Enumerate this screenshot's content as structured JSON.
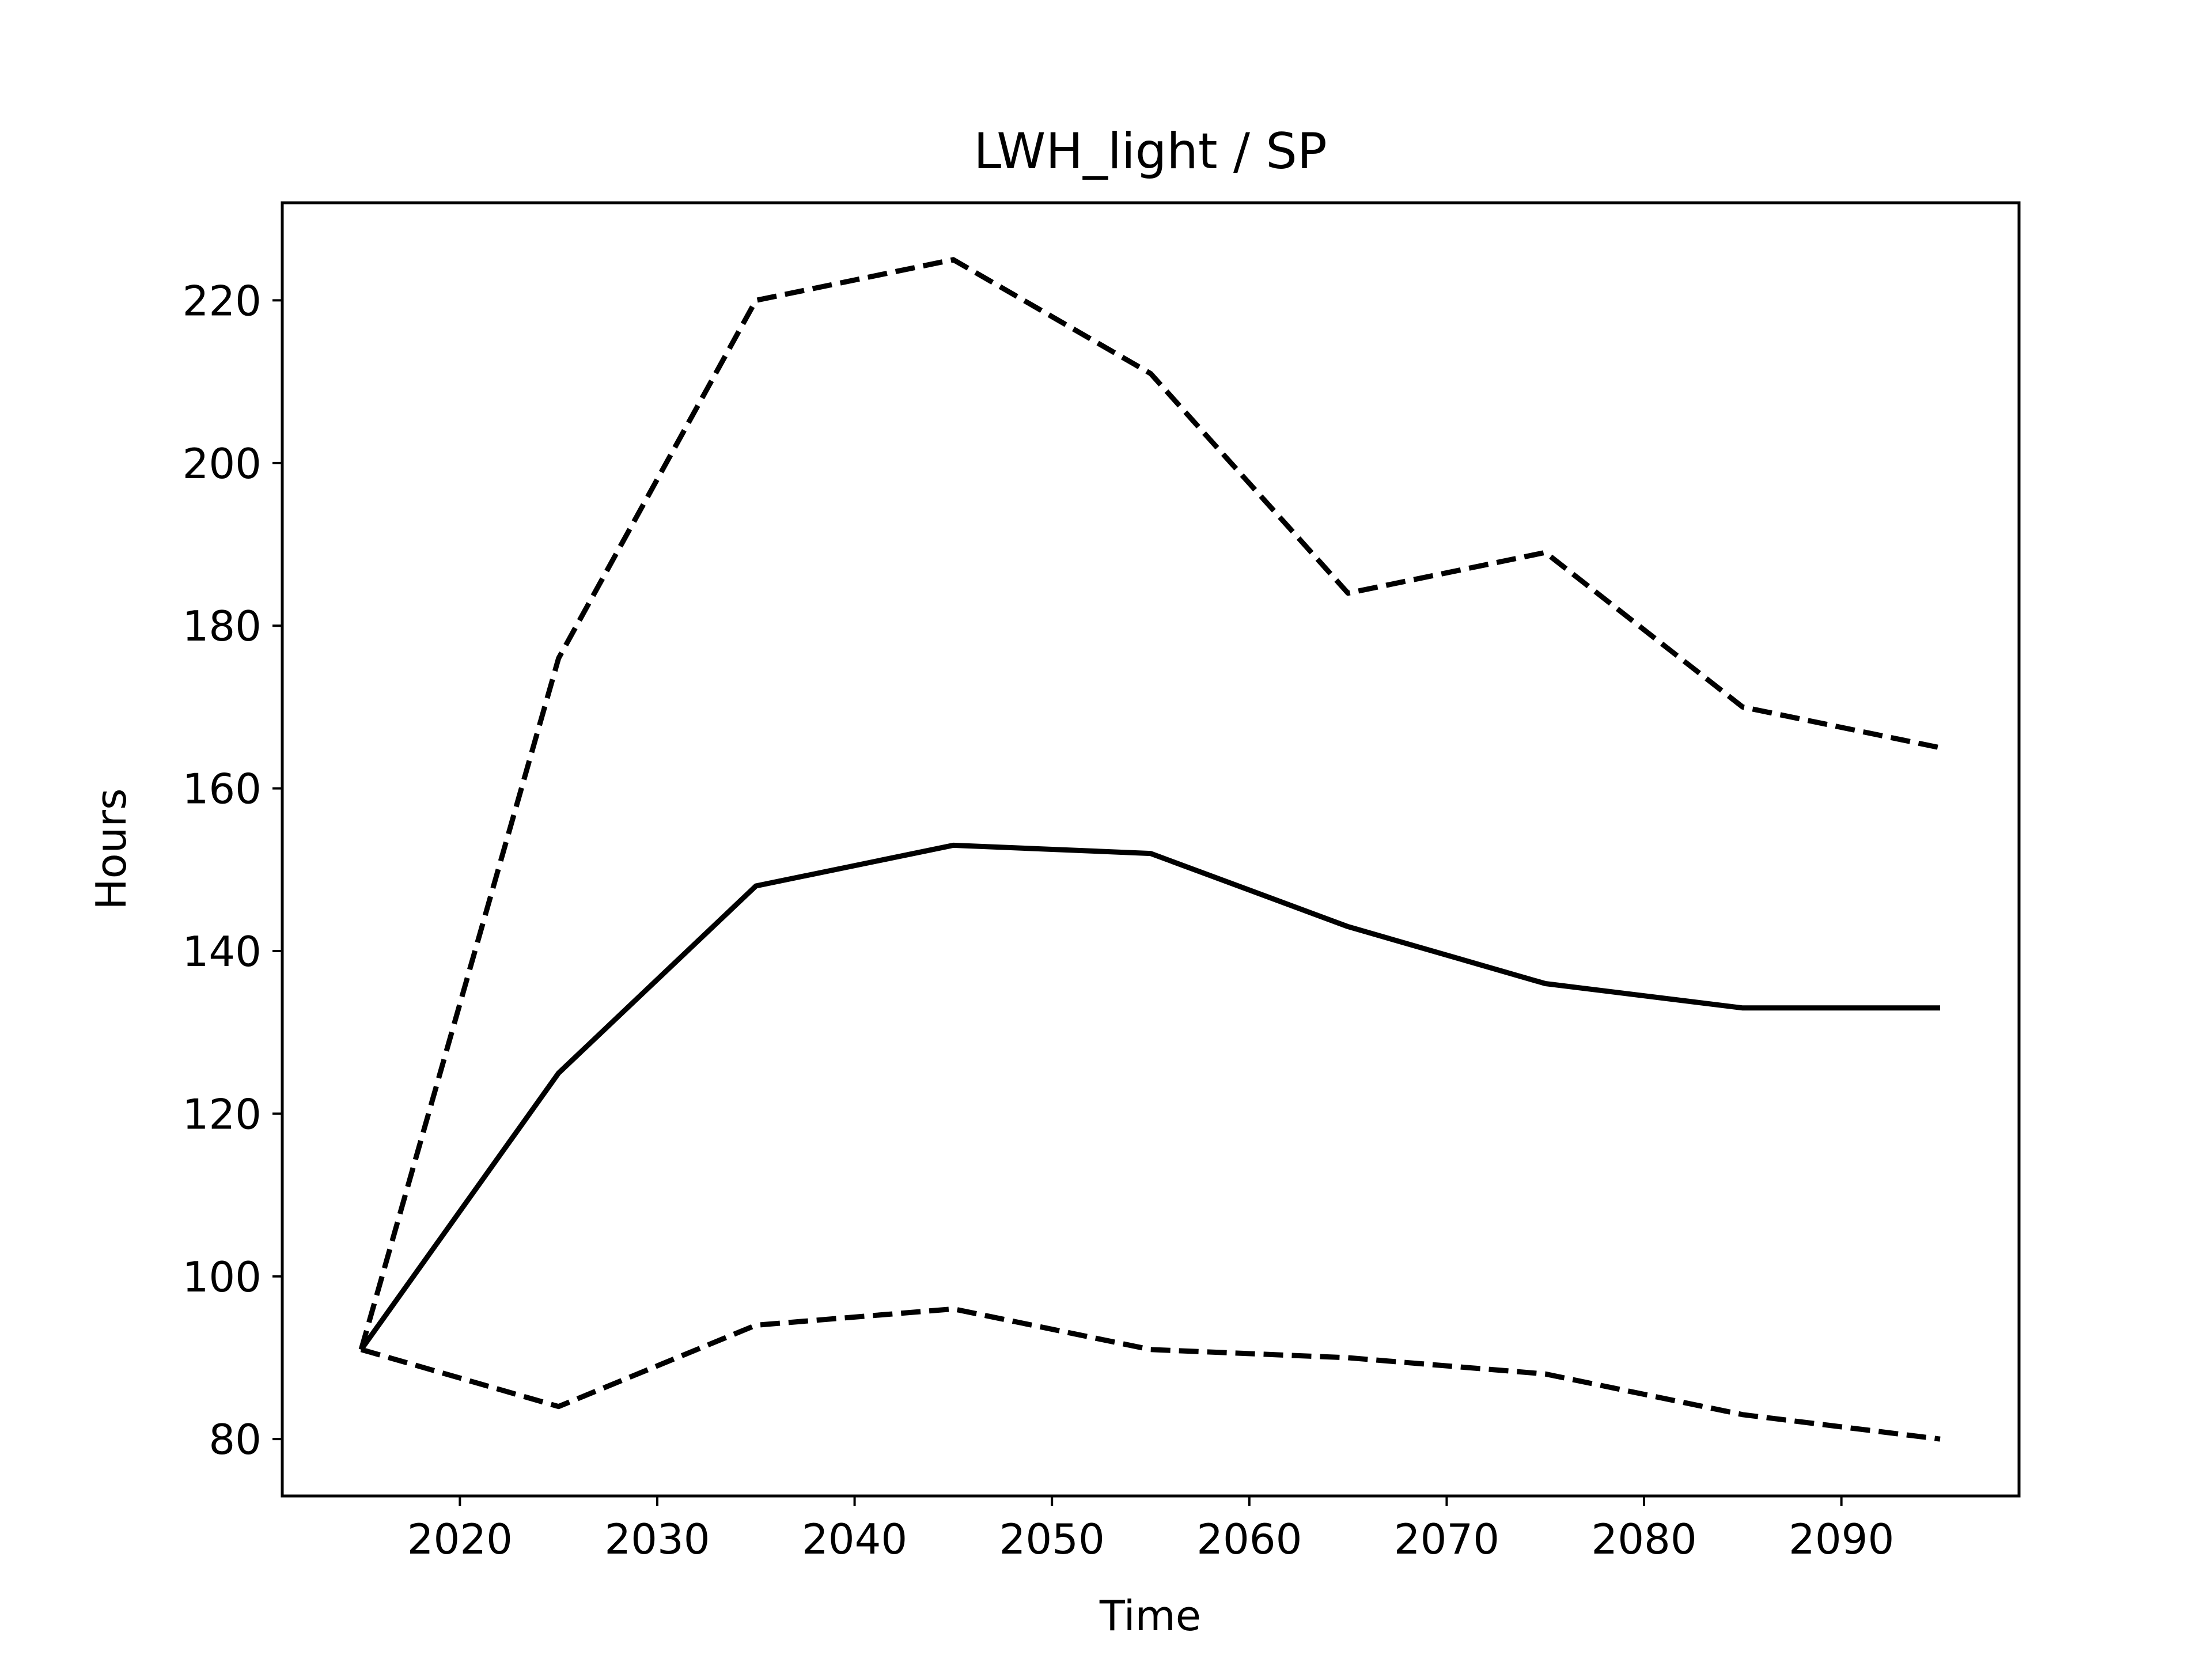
{
  "chart_data": {
    "type": "line",
    "title": "LWH_light / SP",
    "xlabel": "Time",
    "ylabel": "Hours",
    "xlim": [
      2011,
      2099
    ],
    "ylim": [
      73,
      232
    ],
    "xticks": [
      2020,
      2030,
      2040,
      2050,
      2060,
      2070,
      2080,
      2090
    ],
    "yticks": [
      80,
      100,
      120,
      140,
      160,
      180,
      200,
      220
    ],
    "grid": false,
    "legend": "none",
    "x": [
      2015,
      2025,
      2035,
      2045,
      2055,
      2065,
      2075,
      2085,
      2095
    ],
    "series": [
      {
        "style": "dashed",
        "color": "#000000",
        "values": [
          91,
          176,
          220,
          225,
          211,
          184,
          189,
          170,
          165
        ]
      },
      {
        "style": "solid",
        "color": "#000000",
        "values": [
          91,
          125,
          148,
          153,
          152,
          143,
          136,
          133,
          133
        ]
      },
      {
        "style": "dashed",
        "color": "#000000",
        "values": [
          91,
          84,
          94,
          96,
          91,
          90,
          88,
          83,
          80
        ]
      }
    ]
  }
}
